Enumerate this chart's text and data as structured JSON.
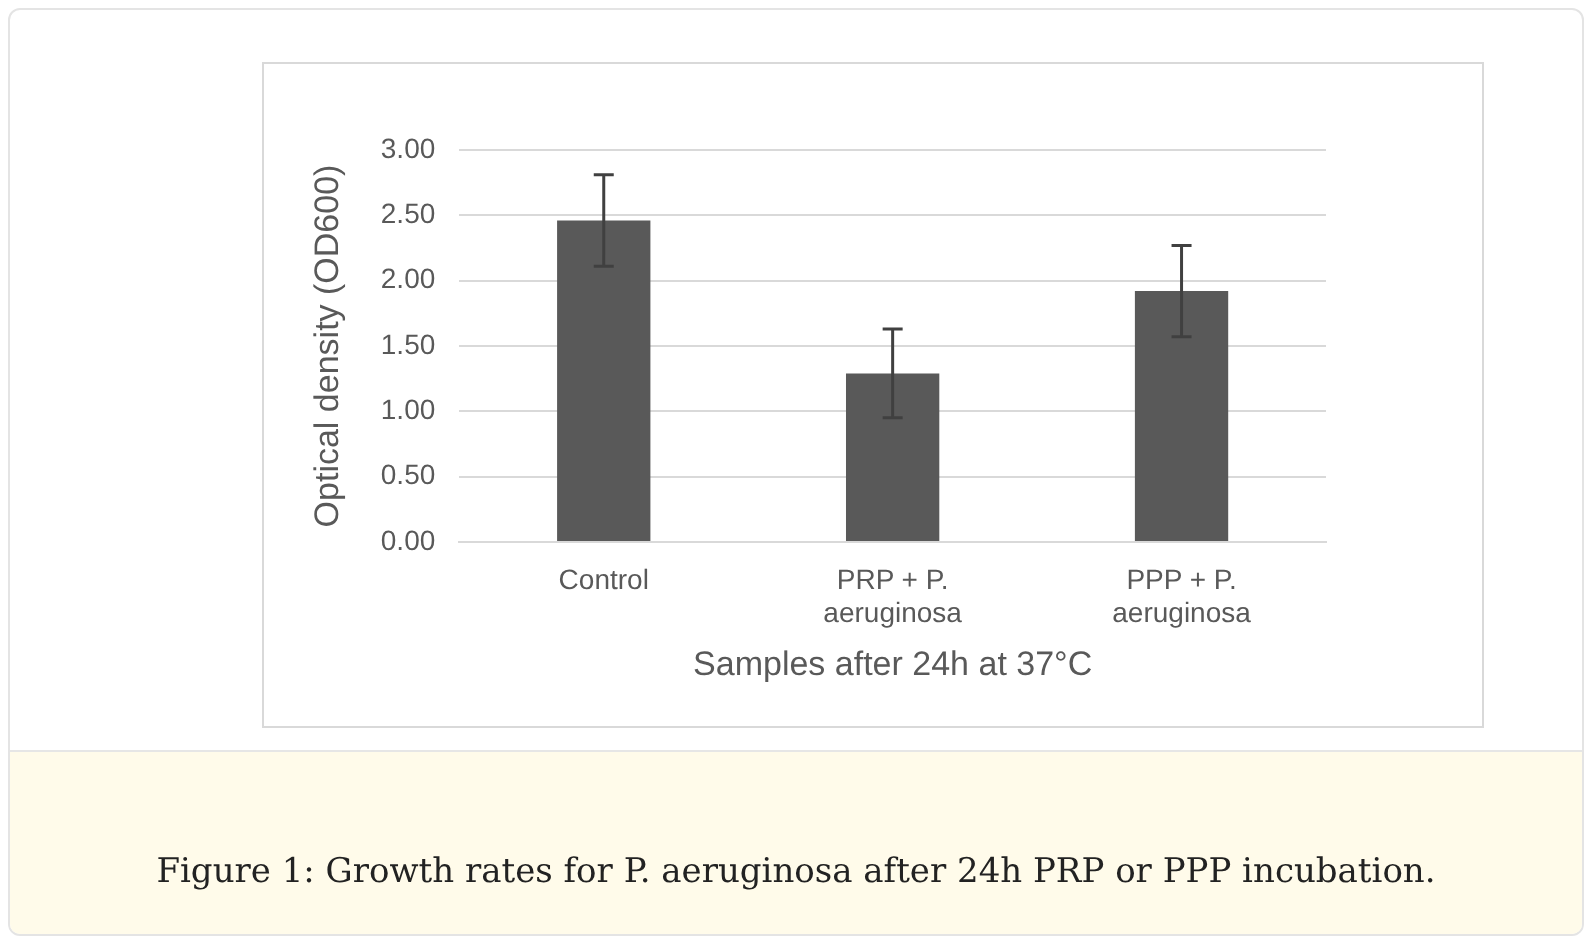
{
  "chart_data": {
    "type": "bar",
    "xlabel": "Samples after 24h at 37°C",
    "ylabel": "Optical density (OD600)",
    "categories": [
      "Control",
      "PRP + P. aeruginosa",
      "PPP + P. aeruginosa"
    ],
    "values": [
      2.46,
      1.29,
      1.92
    ],
    "errors": [
      0.35,
      0.34,
      0.35
    ],
    "color": "#595959",
    "ylim": [
      0,
      3
    ],
    "yticks": [
      {
        "value": 0,
        "label": "0.00"
      },
      {
        "value": 0.5,
        "label": "0.50"
      },
      {
        "value": 1,
        "label": "1.00"
      },
      {
        "value": 1.5,
        "label": "1.50"
      },
      {
        "value": 2,
        "label": "2.00"
      },
      {
        "value": 2.5,
        "label": "2.50"
      },
      {
        "value": 3,
        "label": "3.00"
      }
    ],
    "grid": "y",
    "legend": false,
    "annotations": [
      "Figure 1: Growth rates for P. aeruginosa after 24h PRP or PPP incubation."
    ]
  }
}
